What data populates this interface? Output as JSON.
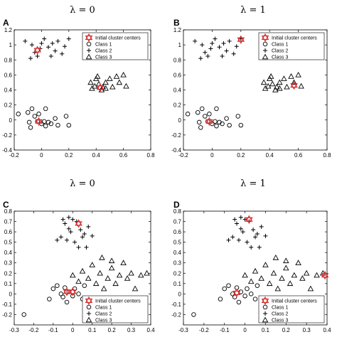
{
  "chart_data": [
    {
      "type": "scatter",
      "panel_label": "A",
      "title": "λ = 0",
      "xlim": [
        -0.2,
        0.8
      ],
      "ylim": [
        -0.4,
        1.2
      ],
      "xticks": [
        "-0.2",
        "0",
        "0.2",
        "0.4",
        "0.6",
        "0.8"
      ],
      "yticks": [
        "-0.4",
        "-0.2",
        "0",
        "0.2",
        "0.4",
        "0.6",
        "0.8",
        "1",
        "1.2"
      ],
      "legend_position": "top-right",
      "series": [
        {
          "name": "Initial cluster centers",
          "marker": "hexagram",
          "color": "#d62728",
          "points": [
            [
              -0.03,
              0.93
            ],
            [
              0.43,
              0.43
            ],
            [
              -0.02,
              -0.02
            ]
          ]
        },
        {
          "name": "Class 1",
          "marker": "circle",
          "color": "#000000",
          "points": [
            [
              -0.17,
              0.08
            ],
            [
              -0.1,
              0.1
            ],
            [
              -0.07,
              0.15
            ],
            [
              -0.09,
              -0.03
            ],
            [
              -0.08,
              -0.1
            ],
            [
              -0.05,
              0.05
            ],
            [
              -0.03,
              -0.02
            ],
            [
              -0.02,
              0.08
            ],
            [
              0.0,
              -0.05
            ],
            [
              0.02,
              -0.02
            ],
            [
              0.03,
              -0.08
            ],
            [
              0.05,
              -0.03
            ],
            [
              0.07,
              -0.05
            ],
            [
              0.1,
              0.02
            ],
            [
              0.12,
              -0.07
            ],
            [
              0.18,
              0.05
            ],
            [
              0.2,
              -0.07
            ],
            [
              0.03,
              0.15
            ]
          ]
        },
        {
          "name": "Class 2",
          "marker": "plus",
          "color": "#000000",
          "points": [
            [
              -0.12,
              1.05
            ],
            [
              -0.07,
              1.0
            ],
            [
              -0.05,
              0.9
            ],
            [
              -0.03,
              0.85
            ],
            [
              0.0,
              1.02
            ],
            [
              0.02,
              1.08
            ],
            [
              0.05,
              0.97
            ],
            [
              0.08,
              1.02
            ],
            [
              0.1,
              0.92
            ],
            [
              0.12,
              1.05
            ],
            [
              0.15,
              0.88
            ],
            [
              0.17,
              0.98
            ],
            [
              0.2,
              1.08
            ],
            [
              -0.08,
              0.82
            ],
            [
              0.07,
              0.85
            ],
            [
              -0.01,
              0.95
            ]
          ]
        },
        {
          "name": "Class 3",
          "marker": "triangle",
          "color": "#000000",
          "points": [
            [
              0.36,
              0.5
            ],
            [
              0.37,
              0.42
            ],
            [
              0.39,
              0.45
            ],
            [
              0.4,
              0.55
            ],
            [
              0.42,
              0.48
            ],
            [
              0.44,
              0.4
            ],
            [
              0.45,
              0.44
            ],
            [
              0.47,
              0.5
            ],
            [
              0.47,
              0.42
            ],
            [
              0.5,
              0.55
            ],
            [
              0.52,
              0.44
            ],
            [
              0.55,
              0.58
            ],
            [
              0.57,
              0.5
            ],
            [
              0.6,
              0.6
            ],
            [
              0.62,
              0.45
            ],
            [
              0.41,
              0.58
            ]
          ]
        }
      ]
    },
    {
      "type": "scatter",
      "panel_label": "B",
      "title": "λ = 1",
      "xlim": [
        -0.2,
        0.8
      ],
      "ylim": [
        -0.4,
        1.2
      ],
      "xticks": [
        "-0.2",
        "0",
        "0.2",
        "0.4",
        "0.6",
        "0.8"
      ],
      "yticks": [
        "-0.4",
        "-0.2",
        "0",
        "0.2",
        "0.4",
        "0.6",
        "0.8",
        "1",
        "1.2"
      ],
      "legend_position": "top-right",
      "series": [
        {
          "name": "Initial cluster centers",
          "marker": "hexagram",
          "color": "#d62728",
          "points": [
            [
              0.2,
              1.07
            ],
            [
              0.57,
              0.46
            ],
            [
              -0.02,
              -0.02
            ]
          ]
        },
        {
          "name": "Class 1",
          "marker": "circle",
          "color": "#000000",
          "points": [
            [
              -0.17,
              0.08
            ],
            [
              -0.1,
              0.1
            ],
            [
              -0.07,
              0.15
            ],
            [
              -0.09,
              -0.03
            ],
            [
              -0.08,
              -0.1
            ],
            [
              -0.05,
              0.05
            ],
            [
              -0.03,
              -0.02
            ],
            [
              -0.02,
              0.08
            ],
            [
              0.0,
              -0.05
            ],
            [
              0.02,
              -0.02
            ],
            [
              0.03,
              -0.08
            ],
            [
              0.05,
              -0.03
            ],
            [
              0.07,
              -0.05
            ],
            [
              0.1,
              0.02
            ],
            [
              0.12,
              -0.07
            ],
            [
              0.18,
              0.05
            ],
            [
              0.2,
              -0.07
            ],
            [
              0.03,
              0.15
            ]
          ]
        },
        {
          "name": "Class 2",
          "marker": "plus",
          "color": "#000000",
          "points": [
            [
              -0.12,
              1.05
            ],
            [
              -0.07,
              1.0
            ],
            [
              -0.05,
              0.9
            ],
            [
              -0.03,
              0.85
            ],
            [
              0.0,
              1.02
            ],
            [
              0.02,
              1.08
            ],
            [
              0.05,
              0.97
            ],
            [
              0.08,
              1.02
            ],
            [
              0.1,
              0.92
            ],
            [
              0.12,
              1.05
            ],
            [
              0.15,
              0.88
            ],
            [
              0.17,
              0.98
            ],
            [
              0.2,
              1.08
            ],
            [
              -0.08,
              0.82
            ],
            [
              0.07,
              0.85
            ],
            [
              -0.01,
              0.95
            ]
          ]
        },
        {
          "name": "Class 3",
          "marker": "triangle",
          "color": "#000000",
          "points": [
            [
              0.36,
              0.5
            ],
            [
              0.37,
              0.42
            ],
            [
              0.39,
              0.45
            ],
            [
              0.4,
              0.55
            ],
            [
              0.42,
              0.48
            ],
            [
              0.44,
              0.4
            ],
            [
              0.45,
              0.44
            ],
            [
              0.47,
              0.5
            ],
            [
              0.47,
              0.42
            ],
            [
              0.5,
              0.55
            ],
            [
              0.52,
              0.44
            ],
            [
              0.55,
              0.58
            ],
            [
              0.57,
              0.5
            ],
            [
              0.6,
              0.6
            ],
            [
              0.62,
              0.45
            ],
            [
              0.41,
              0.58
            ]
          ]
        }
      ]
    },
    {
      "type": "scatter",
      "panel_label": "C",
      "title": "λ = 0",
      "xlim": [
        -0.3,
        0.4
      ],
      "ylim": [
        -0.3,
        0.8
      ],
      "xticks": [
        "-0.3",
        "-0.2",
        "-0.1",
        "0",
        "0.1",
        "0.2",
        "0.3",
        "0.4"
      ],
      "yticks": [
        "-0.2",
        "-0.1",
        "0",
        "0.1",
        "0.2",
        "0.3",
        "0.4",
        "0.5",
        "0.6",
        "0.7",
        "0.8"
      ],
      "legend_position": "bottom-right",
      "series": [
        {
          "name": "Initial cluster centers",
          "marker": "hexagram",
          "color": "#d62728",
          "points": [
            [
              0.03,
              0.68
            ],
            [
              -0.03,
              0.02
            ],
            [
              0.0,
              0.02
            ]
          ]
        },
        {
          "name": "Class 1",
          "marker": "circle",
          "color": "#000000",
          "points": [
            [
              -0.25,
              -0.2
            ],
            [
              -0.12,
              -0.05
            ],
            [
              -0.1,
              0.05
            ],
            [
              -0.08,
              0.08
            ],
            [
              -0.06,
              0.0
            ],
            [
              -0.05,
              -0.03
            ],
            [
              -0.04,
              0.06
            ],
            [
              -0.02,
              0.02
            ],
            [
              0.0,
              -0.02
            ],
            [
              0.01,
              0.05
            ],
            [
              0.03,
              0.0
            ],
            [
              0.05,
              -0.05
            ],
            [
              0.06,
              0.08
            ],
            [
              -0.03,
              -0.08
            ]
          ]
        },
        {
          "name": "Class 2",
          "marker": "plus",
          "color": "#000000",
          "points": [
            [
              -0.05,
              0.72
            ],
            [
              -0.04,
              0.68
            ],
            [
              -0.02,
              0.74
            ],
            [
              0.0,
              0.72
            ],
            [
              0.02,
              0.7
            ],
            [
              0.04,
              0.62
            ],
            [
              0.06,
              0.58
            ],
            [
              0.08,
              0.65
            ],
            [
              0.1,
              0.56
            ],
            [
              -0.01,
              0.6
            ],
            [
              -0.06,
              0.55
            ],
            [
              -0.03,
              0.52
            ],
            [
              0.01,
              0.5
            ],
            [
              0.03,
              0.45
            ],
            [
              0.05,
              0.55
            ],
            [
              -0.08,
              0.52
            ],
            [
              0.07,
              0.45
            ],
            [
              -0.02,
              0.63
            ]
          ]
        },
        {
          "name": "Class 3",
          "marker": "triangle",
          "color": "#000000",
          "points": [
            [
              0.0,
              0.18
            ],
            [
              0.03,
              0.12
            ],
            [
              0.05,
              0.22
            ],
            [
              0.08,
              0.15
            ],
            [
              0.1,
              0.28
            ],
            [
              0.12,
              0.1
            ],
            [
              0.14,
              0.2
            ],
            [
              0.16,
              0.05
            ],
            [
              0.18,
              0.15
            ],
            [
              0.2,
              0.25
            ],
            [
              0.22,
              0.1
            ],
            [
              0.24,
              0.18
            ],
            [
              0.26,
              0.3
            ],
            [
              0.28,
              0.15
            ],
            [
              0.3,
              0.2
            ],
            [
              0.32,
              0.05
            ],
            [
              0.35,
              0.18
            ],
            [
              0.38,
              0.2
            ],
            [
              0.15,
              0.35
            ],
            [
              0.2,
              0.32
            ],
            [
              0.12,
              -0.05
            ],
            [
              0.18,
              -0.1
            ],
            [
              0.25,
              -0.05
            ]
          ]
        }
      ]
    },
    {
      "type": "scatter",
      "panel_label": "D",
      "title": "λ = 1",
      "xlim": [
        -0.3,
        0.4
      ],
      "ylim": [
        -0.3,
        0.8
      ],
      "xticks": [
        "-0.3",
        "-0.2",
        "-0.1",
        "0",
        "0.1",
        "0.2",
        "0.3",
        "0.4"
      ],
      "yticks": [
        "-0.2",
        "-0.1",
        "0",
        "0.1",
        "0.2",
        "0.3",
        "0.4",
        "0.5",
        "0.6",
        "0.7",
        "0.8"
      ],
      "legend_position": "bottom-right",
      "series": [
        {
          "name": "Initial cluster centers",
          "marker": "hexagram",
          "color": "#d62728",
          "points": [
            [
              0.02,
              0.72
            ],
            [
              -0.04,
              0.01
            ],
            [
              0.39,
              0.18
            ]
          ]
        },
        {
          "name": "Class 1",
          "marker": "circle",
          "color": "#000000",
          "points": [
            [
              -0.25,
              -0.2
            ],
            [
              -0.12,
              -0.05
            ],
            [
              -0.1,
              0.05
            ],
            [
              -0.08,
              0.08
            ],
            [
              -0.06,
              0.0
            ],
            [
              -0.05,
              -0.03
            ],
            [
              -0.04,
              0.06
            ],
            [
              -0.02,
              0.02
            ],
            [
              0.0,
              -0.02
            ],
            [
              0.01,
              0.05
            ],
            [
              0.03,
              0.0
            ],
            [
              0.05,
              -0.05
            ],
            [
              0.06,
              0.08
            ],
            [
              -0.03,
              -0.08
            ]
          ]
        },
        {
          "name": "Class 2",
          "marker": "plus",
          "color": "#000000",
          "points": [
            [
              -0.05,
              0.72
            ],
            [
              -0.04,
              0.68
            ],
            [
              -0.02,
              0.74
            ],
            [
              0.0,
              0.72
            ],
            [
              0.02,
              0.7
            ],
            [
              0.04,
              0.62
            ],
            [
              0.06,
              0.58
            ],
            [
              0.08,
              0.65
            ],
            [
              0.1,
              0.56
            ],
            [
              -0.01,
              0.6
            ],
            [
              -0.06,
              0.55
            ],
            [
              -0.03,
              0.52
            ],
            [
              0.01,
              0.5
            ],
            [
              0.03,
              0.45
            ],
            [
              0.05,
              0.55
            ],
            [
              -0.08,
              0.52
            ],
            [
              0.07,
              0.45
            ],
            [
              -0.02,
              0.63
            ]
          ]
        },
        {
          "name": "Class 3",
          "marker": "triangle",
          "color": "#000000",
          "points": [
            [
              0.0,
              0.18
            ],
            [
              0.03,
              0.12
            ],
            [
              0.05,
              0.22
            ],
            [
              0.08,
              0.15
            ],
            [
              0.1,
              0.28
            ],
            [
              0.12,
              0.1
            ],
            [
              0.14,
              0.2
            ],
            [
              0.16,
              0.05
            ],
            [
              0.18,
              0.15
            ],
            [
              0.2,
              0.25
            ],
            [
              0.22,
              0.1
            ],
            [
              0.24,
              0.18
            ],
            [
              0.26,
              0.3
            ],
            [
              0.28,
              0.15
            ],
            [
              0.3,
              0.2
            ],
            [
              0.32,
              0.05
            ],
            [
              0.35,
              0.18
            ],
            [
              0.38,
              0.2
            ],
            [
              0.15,
              0.35
            ],
            [
              0.2,
              0.32
            ],
            [
              0.12,
              -0.05
            ],
            [
              0.18,
              -0.1
            ],
            [
              0.25,
              -0.05
            ]
          ]
        }
      ]
    }
  ]
}
